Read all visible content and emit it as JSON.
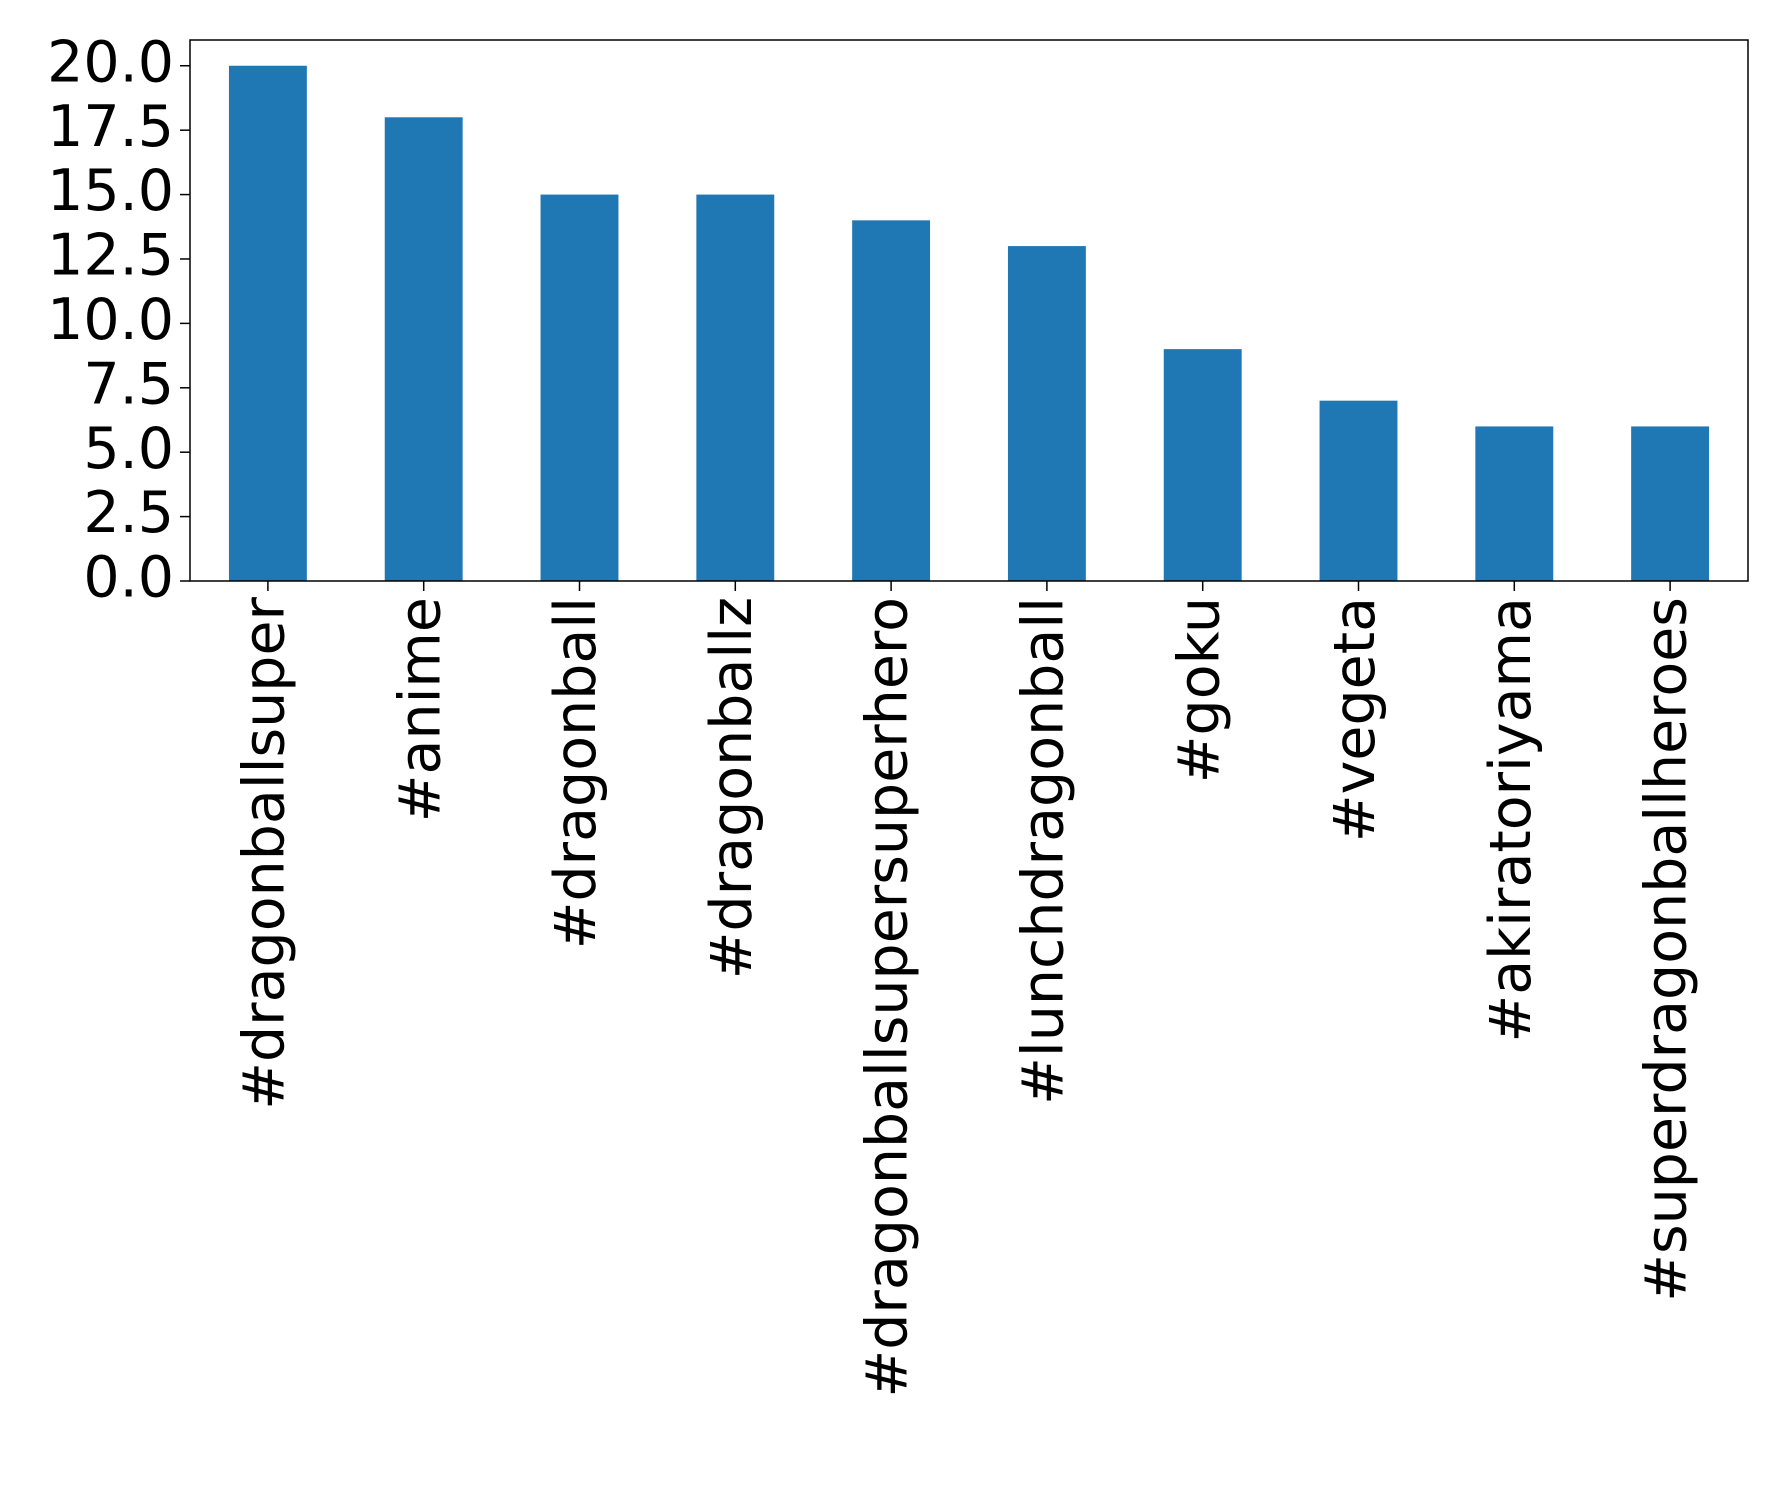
{
  "chart_data": {
    "type": "bar",
    "categories": [
      "#dragonballsuper",
      "#anime",
      "#dragonball",
      "#dragonballz",
      "#dragonballsupersuperhero",
      "#lunchdragonball",
      "#goku",
      "#vegeta",
      "#akiratoriyama",
      "#superdragonballheroes"
    ],
    "values": [
      20,
      18,
      15,
      15,
      14,
      13,
      9,
      7,
      6,
      6
    ],
    "color": "#1f77b4",
    "ylim": [
      0,
      21
    ],
    "yticks": [
      {
        "value": 0,
        "label": "0.0"
      },
      2.5,
      {
        "value": 5,
        "label": "5.0"
      },
      7.5,
      {
        "value": 10,
        "label": "10.0"
      },
      12.5,
      {
        "value": 15,
        "label": "15.0"
      },
      17.5,
      {
        "value": 20,
        "label": "20.0"
      }
    ],
    "grid": false
  }
}
